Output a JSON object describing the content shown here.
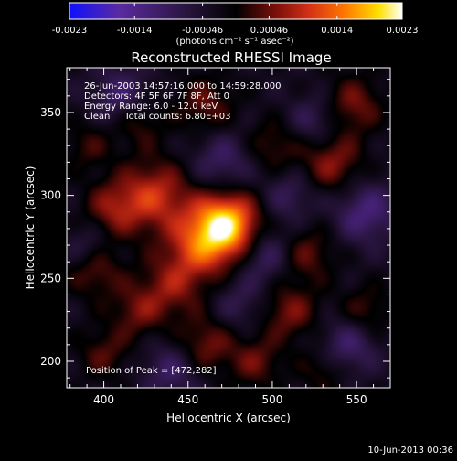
{
  "chart_data": {
    "type": "heatmap",
    "title": "Reconstructed RHESSI Image",
    "xlabel": "Heliocentric X (arcsec)",
    "ylabel": "Heliocentric Y (arcsec)",
    "xlim": [
      378,
      570
    ],
    "ylim": [
      184,
      377
    ],
    "x_ticks": [
      400,
      450,
      500,
      550
    ],
    "y_ticks": [
      200,
      250,
      300,
      350
    ],
    "colorbar": {
      "ticks": [
        "-0.0023",
        "-0.0014",
        "-0.00046",
        "0.00046",
        "0.0014",
        "0.0023"
      ],
      "range": [
        -0.0023,
        0.0023
      ],
      "unit_label": "(photons cm⁻² s⁻¹ asec⁻²)"
    },
    "annotations": [
      "26-Jun-2003 14:57:16.000 to 14:59:28.000",
      "Detectors: 4F 5F 6F 7F 8F, Att 0",
      "Energy Range: 6.0 - 12.0 keV",
      "Clean     Total counts: 6.80E+03"
    ],
    "peak_label": "Position of Peak = [472,282]",
    "peak": [
      472,
      282
    ],
    "peak_value": 0.0023,
    "blobs": [
      {
        "x": 472,
        "y": 282,
        "amp": 0.0024,
        "s": 14
      },
      {
        "x": 455,
        "y": 268,
        "amp": 0.001,
        "s": 14
      },
      {
        "x": 430,
        "y": 300,
        "amp": 0.0012,
        "s": 15
      },
      {
        "x": 405,
        "y": 292,
        "amp": 0.0008,
        "s": 12
      },
      {
        "x": 395,
        "y": 255,
        "amp": 0.0007,
        "s": 12
      },
      {
        "x": 440,
        "y": 245,
        "amp": 0.0008,
        "s": 13
      },
      {
        "x": 420,
        "y": 230,
        "amp": 0.0007,
        "s": 11
      },
      {
        "x": 460,
        "y": 210,
        "amp": 0.0008,
        "s": 12
      },
      {
        "x": 490,
        "y": 200,
        "amp": 0.0007,
        "s": 11
      },
      {
        "x": 510,
        "y": 230,
        "amp": 0.0008,
        "s": 12
      },
      {
        "x": 520,
        "y": 265,
        "amp": 0.0007,
        "s": 12
      },
      {
        "x": 535,
        "y": 320,
        "amp": 0.0009,
        "s": 13
      },
      {
        "x": 548,
        "y": 355,
        "amp": 0.0008,
        "s": 12
      },
      {
        "x": 500,
        "y": 330,
        "amp": 0.0006,
        "s": 11
      },
      {
        "x": 460,
        "y": 355,
        "amp": 0.0007,
        "s": 12
      },
      {
        "x": 420,
        "y": 345,
        "amp": 0.0006,
        "s": 11
      },
      {
        "x": 390,
        "y": 330,
        "amp": 0.0005,
        "s": 10
      },
      {
        "x": 555,
        "y": 230,
        "amp": 0.0006,
        "s": 11
      },
      {
        "x": 530,
        "y": 195,
        "amp": 0.0005,
        "s": 10
      },
      {
        "x": 400,
        "y": 205,
        "amp": 0.0006,
        "s": 11
      },
      {
        "x": 470,
        "y": 320,
        "amp": -0.0007,
        "s": 13
      },
      {
        "x": 410,
        "y": 360,
        "amp": -0.0008,
        "s": 12
      },
      {
        "x": 555,
        "y": 290,
        "amp": -0.0009,
        "s": 13
      },
      {
        "x": 495,
        "y": 265,
        "amp": -0.0008,
        "s": 12
      },
      {
        "x": 440,
        "y": 195,
        "amp": -0.0007,
        "s": 12
      },
      {
        "x": 510,
        "y": 300,
        "amp": -0.0006,
        "s": 11
      },
      {
        "x": 390,
        "y": 270,
        "amp": -0.0005,
        "s": 10
      },
      {
        "x": 545,
        "y": 210,
        "amp": -0.0008,
        "s": 12
      },
      {
        "x": 525,
        "y": 345,
        "amp": -0.0006,
        "s": 11
      },
      {
        "x": 480,
        "y": 235,
        "amp": -0.0005,
        "s": 11
      }
    ]
  },
  "footer": {
    "timestamp": "10-Jun-2013 00:36"
  },
  "colors": {
    "colormap": [
      "#1010ff",
      "#5a2aa0",
      "#2a1540",
      "#000000",
      "#7a0f0a",
      "#d43016",
      "#ff7a00",
      "#ffe000",
      "#ffffff"
    ],
    "axis": "#ffffff",
    "background": "#000000"
  }
}
